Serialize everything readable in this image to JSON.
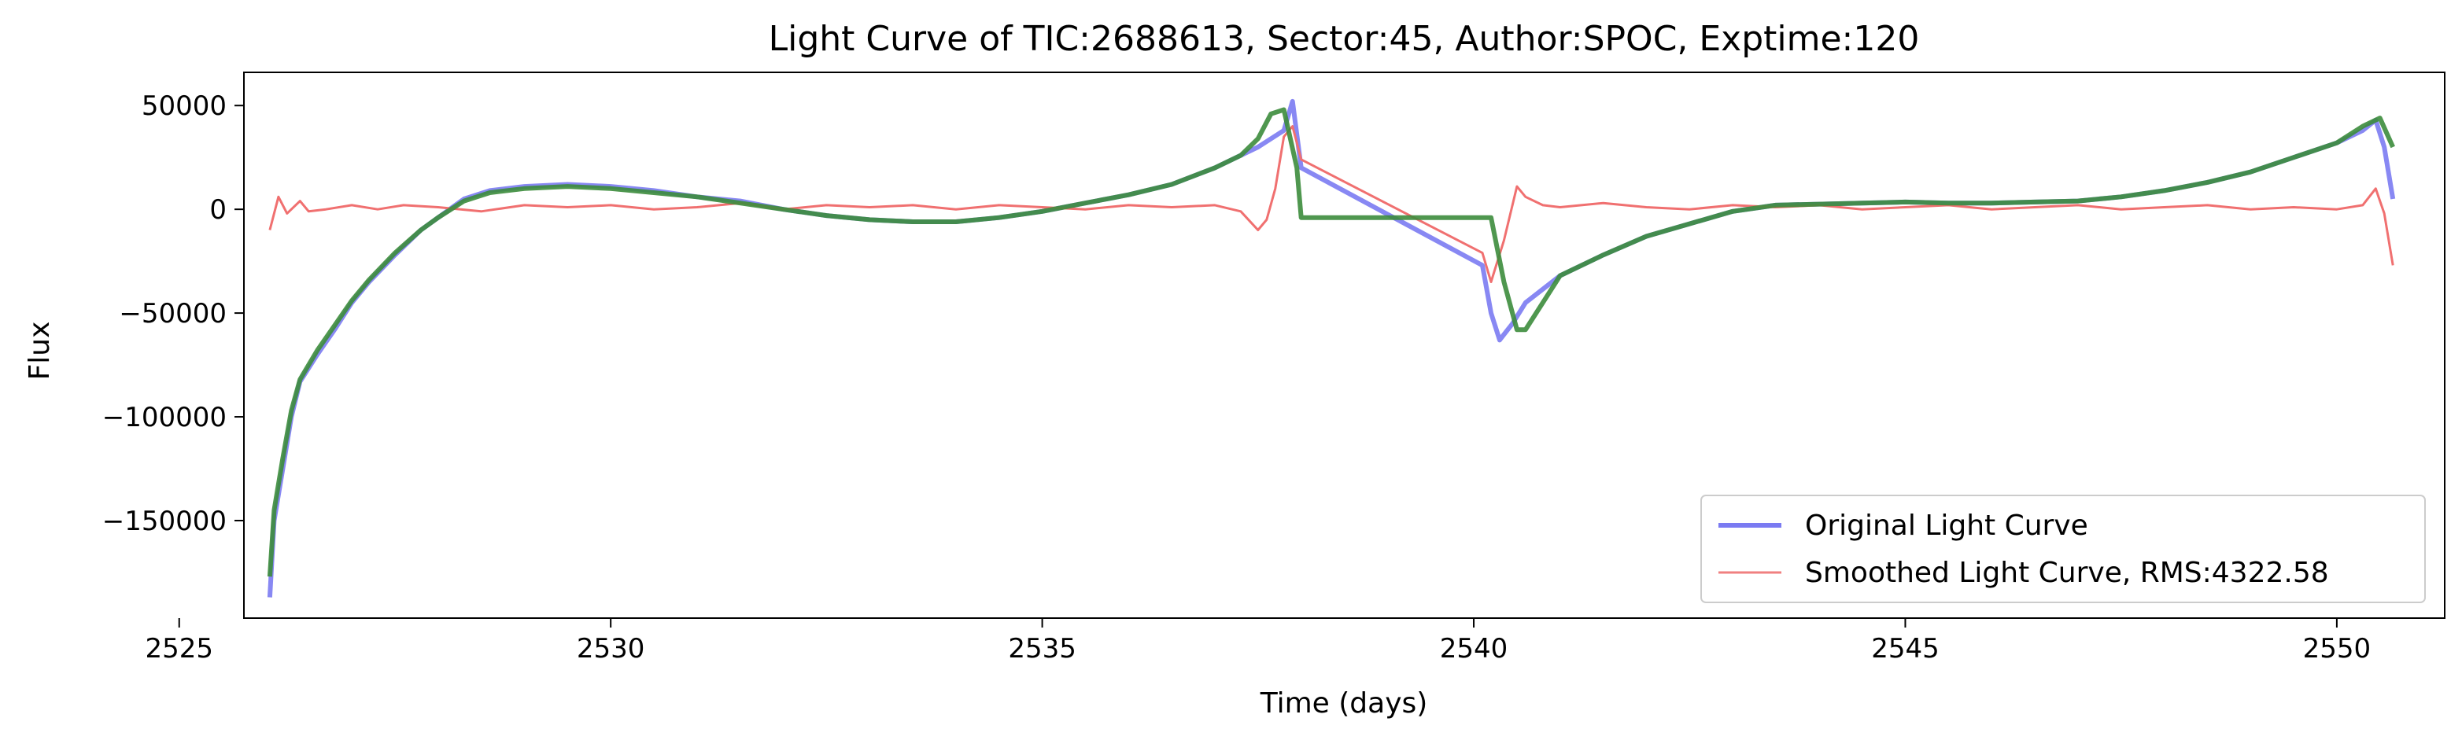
{
  "chart_data": {
    "type": "line",
    "title": "Light Curve of TIC:2688613, Sector:45, Author:SPOC, Exptime:120",
    "xlabel": "Time (days)",
    "ylabel": "Flux",
    "xlim": [
      2525.75,
      2551.25
    ],
    "ylim": [
      -197000,
      66000
    ],
    "xticks": [
      2525,
      2530,
      2535,
      2540,
      2545,
      2550
    ],
    "xtick_labels": [
      "2525",
      "2530",
      "2535",
      "2540",
      "2545",
      "2550"
    ],
    "yticks": [
      50000,
      0,
      -50000,
      -100000,
      -150000
    ],
    "ytick_labels": [
      "50000",
      "0",
      "−50000",
      "−100000",
      "−150000"
    ],
    "grid": false,
    "legend_position": "lower-right",
    "legend": [
      {
        "label": "Original Light Curve",
        "color": "#7b7bf2"
      },
      {
        "label": "Smoothed Light Curve, RMS:4322.58",
        "color": "#f08080"
      }
    ],
    "series": [
      {
        "name": "Original Light Curve",
        "color": "#6a6af0",
        "x": [
          2526.05,
          2526.1,
          2526.2,
          2526.3,
          2526.4,
          2526.6,
          2526.8,
          2527.0,
          2527.2,
          2527.5,
          2527.8,
          2528.0,
          2528.3,
          2528.6,
          2529.0,
          2529.5,
          2530.0,
          2530.5,
          2531.0,
          2531.5,
          2532.0,
          2532.5,
          2533.0,
          2533.5,
          2534.0,
          2534.5,
          2535.0,
          2535.5,
          2536.0,
          2536.5,
          2537.0,
          2537.5,
          2537.8,
          2537.9,
          2538.0,
          2540.1,
          2540.2,
          2540.3,
          2540.45,
          2540.6,
          2541.0,
          2541.5,
          2542.0,
          2542.5,
          2543.0,
          2543.5,
          2544.0,
          2544.5,
          2545.0,
          2545.5,
          2546.0,
          2546.5,
          2547.0,
          2547.5,
          2548.0,
          2548.5,
          2549.0,
          2549.5,
          2550.0,
          2550.3,
          2550.45,
          2550.55,
          2550.65
        ],
        "y": [
          -187000,
          -150000,
          -125000,
          -100000,
          -83000,
          -70000,
          -58000,
          -45000,
          -35000,
          -22000,
          -10000,
          -4000,
          5000,
          9000,
          11000,
          12000,
          11000,
          9000,
          6000,
          4000,
          0,
          -3000,
          -5000,
          -6000,
          -6000,
          -4000,
          -1000,
          3000,
          7000,
          12000,
          20000,
          30000,
          38000,
          52000,
          20000,
          -27000,
          -50000,
          -63000,
          -55000,
          -45000,
          -32000,
          -22000,
          -13000,
          -7000,
          -1000,
          2000,
          2500,
          3000,
          3500,
          3000,
          3000,
          3500,
          4000,
          6000,
          9000,
          13000,
          18000,
          25000,
          32000,
          38000,
          43000,
          30000,
          5000
        ]
      },
      {
        "name": "Smoothed Light Curve, RMS:4322.58",
        "color": "#f07070",
        "x": [
          2526.05,
          2526.15,
          2526.25,
          2526.4,
          2526.5,
          2526.7,
          2527.0,
          2527.3,
          2527.6,
          2528.0,
          2528.5,
          2529.0,
          2529.5,
          2530.0,
          2530.5,
          2531.0,
          2531.5,
          2532.0,
          2532.5,
          2533.0,
          2533.5,
          2534.0,
          2534.5,
          2535.0,
          2535.5,
          2536.0,
          2536.5,
          2537.0,
          2537.3,
          2537.5,
          2537.6,
          2537.7,
          2537.8,
          2537.9,
          2538.0,
          2540.1,
          2540.2,
          2540.35,
          2540.5,
          2540.6,
          2540.8,
          2541.0,
          2541.5,
          2542.0,
          2542.5,
          2543.0,
          2543.5,
          2544.0,
          2544.5,
          2545.0,
          2545.5,
          2546.0,
          2546.5,
          2547.0,
          2547.5,
          2548.0,
          2548.5,
          2549.0,
          2549.5,
          2550.0,
          2550.3,
          2550.45,
          2550.55,
          2550.65
        ],
        "y": [
          -10000,
          6000,
          -2000,
          4000,
          -1000,
          0,
          2000,
          0,
          2000,
          1000,
          -1000,
          2000,
          1000,
          2000,
          0,
          1000,
          3000,
          0,
          2000,
          1000,
          2000,
          0,
          2000,
          1000,
          0,
          2000,
          1000,
          2000,
          -1000,
          -10000,
          -5000,
          10000,
          35000,
          40000,
          24000,
          -21000,
          -35000,
          -15000,
          11000,
          6000,
          2000,
          1000,
          3000,
          1000,
          0,
          2000,
          1000,
          2000,
          0,
          1000,
          2000,
          0,
          1000,
          2000,
          0,
          1000,
          2000,
          0,
          1000,
          0,
          2000,
          10000,
          -2000,
          -27000
        ]
      },
      {
        "name": "",
        "color": "#3c8c3c",
        "x": [
          2526.05,
          2526.1,
          2526.2,
          2526.3,
          2526.4,
          2526.6,
          2526.8,
          2527.0,
          2527.2,
          2527.5,
          2527.8,
          2528.0,
          2528.3,
          2528.6,
          2529.0,
          2529.5,
          2530.0,
          2530.5,
          2531.0,
          2531.5,
          2532.0,
          2532.5,
          2533.0,
          2533.5,
          2534.0,
          2534.5,
          2535.0,
          2535.5,
          2536.0,
          2536.5,
          2537.0,
          2537.3,
          2537.5,
          2537.65,
          2537.8,
          2537.95,
          2538.0,
          2540.2,
          2540.35,
          2540.5,
          2540.6,
          2540.8,
          2541.0,
          2541.5,
          2542.0,
          2542.5,
          2543.0,
          2543.5,
          2544.0,
          2544.5,
          2545.0,
          2545.5,
          2546.0,
          2546.5,
          2547.0,
          2547.5,
          2548.0,
          2548.5,
          2549.0,
          2549.5,
          2550.0,
          2550.3,
          2550.5,
          2550.65
        ],
        "y": [
          -177000,
          -145000,
          -120000,
          -97000,
          -82000,
          -68000,
          -56000,
          -44000,
          -34000,
          -21000,
          -10000,
          -4000,
          4000,
          8000,
          10000,
          11000,
          10000,
          8000,
          6000,
          3000,
          0,
          -3000,
          -5000,
          -6000,
          -6000,
          -4000,
          -1000,
          3000,
          7000,
          12000,
          20000,
          26000,
          34000,
          46000,
          48000,
          20000,
          -4000,
          -4000,
          -35000,
          -58000,
          -58000,
          -45000,
          -32000,
          -22000,
          -13000,
          -7000,
          -1000,
          2000,
          2500,
          3000,
          3500,
          3000,
          3000,
          3500,
          4000,
          6000,
          9000,
          13000,
          18000,
          25000,
          32000,
          40000,
          44000,
          30000
        ]
      }
    ]
  }
}
